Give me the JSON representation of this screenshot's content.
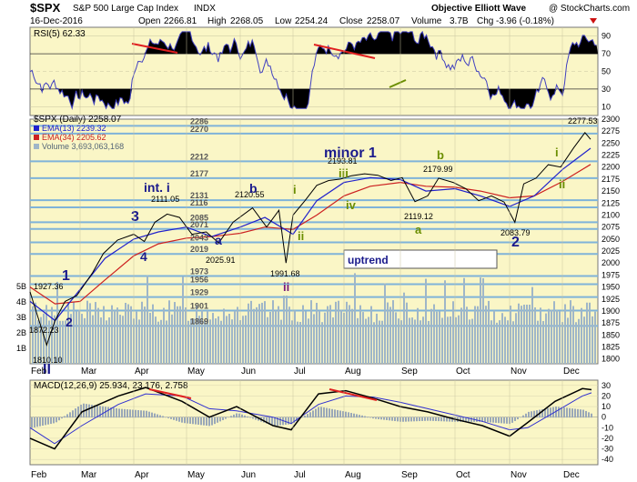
{
  "header": {
    "symbol": "$SPX",
    "name": "S&P 500 Large Cap Index",
    "exchange": "INDX",
    "date": "16-Dec-2016",
    "source": "Objective Elliott Wave",
    "copyright": "@ StockCharts.com",
    "open_label": "Open",
    "open": "2266.81",
    "high_label": "High",
    "high": "2268.05",
    "low_label": "Low",
    "low": "2254.24",
    "close_label": "Close",
    "close": "2258.07",
    "volume_label": "Volume",
    "volume": "3.7B",
    "chg_label": "Chg",
    "chg": "-3.96 (-0.18%)"
  },
  "colors": {
    "panel_bg": "#faf6c6",
    "price_line": "#000000",
    "ema13": "#2020cc",
    "ema34": "#cc2020",
    "volume": "#9fb6c8",
    "rsi_line": "#4040c0",
    "support_lines": "#7fb3d9",
    "wave_blue": "#1a1a8c",
    "wave_green": "#6b8e00",
    "wave_purple": "#7a1a7a",
    "trend_red": "#e02020",
    "macd_line": "#000000",
    "macd_signal": "#3030d0",
    "macd_hist": "#9aa8b8"
  },
  "rsi_panel": {
    "label": "RSI(5) 62.33",
    "ticks": [
      "90",
      "70",
      "50",
      "30",
      "10"
    ]
  },
  "price_panel": {
    "label": "$SPX (Daily) 2258.07",
    "legend": [
      {
        "text": "EMA(13) 2239.32",
        "color": "#2020cc"
      },
      {
        "text": "EMA(34) 2205.62",
        "color": "#cc2020"
      },
      {
        "text": "Volume 3,693,063,168",
        "color": "#9fb6c8"
      }
    ],
    "right_ticks": [
      "2300",
      "2275",
      "2250",
      "2225",
      "2200",
      "2175",
      "2150",
      "2125",
      "2100",
      "2075",
      "2050",
      "2025",
      "2000",
      "1975",
      "1950",
      "1925",
      "1900",
      "1875",
      "1850",
      "1825",
      "1800"
    ],
    "volume_ticks": [
      "5B",
      "4B",
      "3B",
      "2B",
      "1B"
    ],
    "uptrend_box": "uptrend"
  },
  "macd_panel": {
    "label": "MACD(12,26,9) 25.934, 23.176, 2.758",
    "ticks": [
      "30",
      "20",
      "10",
      "0",
      "-10",
      "-20",
      "-30",
      "-40"
    ]
  },
  "x_axis": {
    "months": [
      "Feb",
      "Mar",
      "Apr",
      "May",
      "Jun",
      "Jul",
      "Aug",
      "Sep",
      "Oct",
      "Nov",
      "Dec"
    ]
  },
  "support_levels": [
    "2286",
    "2270",
    "2212",
    "2177",
    "2131",
    "2116",
    "2085",
    "2071",
    "2043",
    "2019",
    "1973",
    "1956",
    "1929",
    "1901",
    "1869"
  ],
  "price_annotations": [
    "2277.53",
    "2193.81",
    "2179.99",
    "2120.55",
    "2111.05",
    "2119.12",
    "2083.79",
    "2025.91",
    "1991.68",
    "1927.36",
    "1872.23",
    "1810.10"
  ],
  "wave_labels": {
    "blue": [
      "1",
      "2",
      "3",
      "4",
      "int. i",
      "b",
      "a",
      "minor 1",
      "2",
      "II"
    ],
    "green": [
      "iii",
      "iv",
      "b",
      "a",
      "i",
      "ii",
      "i",
      "ii"
    ],
    "purple": [
      "ii"
    ]
  },
  "chart_data": {
    "type": "line",
    "title": "$SPX (Daily)",
    "x": [
      "Feb",
      "Mar",
      "Apr",
      "May",
      "Jun",
      "Jul",
      "Aug",
      "Sep",
      "Oct",
      "Nov",
      "Dec"
    ],
    "ylim": [
      1790,
      2300
    ],
    "series": [
      {
        "name": "$SPX (Daily)",
        "points": [
          [
            "Feb 1",
            1940
          ],
          [
            "Feb 11",
            1829
          ],
          [
            "Feb 16",
            1880
          ],
          [
            "Feb 22",
            1920
          ],
          [
            "Feb 29",
            1932
          ],
          [
            "Mar 8",
            1980
          ],
          [
            "Mar 14",
            2020
          ],
          [
            "Mar 22",
            2048
          ],
          [
            "Mar 31",
            2060
          ],
          [
            "Apr 7",
            2045
          ],
          [
            "Apr 13",
            2085
          ],
          [
            "Apr 20",
            2102
          ],
          [
            "Apr 27",
            2095
          ],
          [
            "May 4",
            2060
          ],
          [
            "May 12",
            2065
          ],
          [
            "May 19",
            2042
          ],
          [
            "May 27",
            2085
          ],
          [
            "Jun 8",
            2115
          ],
          [
            "Jun 16",
            2075
          ],
          [
            "Jun 23",
            2110
          ],
          [
            "Jun 27",
            2000
          ],
          [
            "Jul 1",
            2100
          ],
          [
            "Jul 8",
            2130
          ],
          [
            "Jul 15",
            2162
          ],
          [
            "Jul 22",
            2172
          ],
          [
            "Jul 29",
            2175
          ],
          [
            "Aug 5",
            2182
          ],
          [
            "Aug 12",
            2186
          ],
          [
            "Aug 19",
            2183
          ],
          [
            "Aug 26",
            2172
          ],
          [
            "Sep 2",
            2178
          ],
          [
            "Sep 9",
            2128
          ],
          [
            "Sep 16",
            2140
          ],
          [
            "Sep 22",
            2177
          ],
          [
            "Sep 30",
            2168
          ],
          [
            "Oct 7",
            2155
          ],
          [
            "Oct 14",
            2130
          ],
          [
            "Oct 21",
            2140
          ],
          [
            "Oct 28",
            2127
          ],
          [
            "Nov 4",
            2085
          ],
          [
            "Nov 9",
            2165
          ],
          [
            "Nov 16",
            2177
          ],
          [
            "Nov 23",
            2205
          ],
          [
            "Nov 30",
            2200
          ],
          [
            "Dec 7",
            2240
          ],
          [
            "Dec 13",
            2272
          ],
          [
            "Dec 16",
            2258
          ]
        ]
      },
      {
        "name": "EMA(13)",
        "points": [
          [
            "Feb 1",
            1920
          ],
          [
            "Feb 16",
            1880
          ],
          [
            "Mar 1",
            1945
          ],
          [
            "Mar 15",
            2010
          ],
          [
            "Apr 1",
            2050
          ],
          [
            "Apr 15",
            2065
          ],
          [
            "May 1",
            2075
          ],
          [
            "May 15",
            2055
          ],
          [
            "Jun 1",
            2075
          ],
          [
            "Jun 15",
            2095
          ],
          [
            "Jul 1",
            2060
          ],
          [
            "Jul 15",
            2130
          ],
          [
            "Aug 1",
            2168
          ],
          [
            "Aug 15",
            2178
          ],
          [
            "Sep 1",
            2174
          ],
          [
            "Sep 15",
            2150
          ],
          [
            "Oct 1",
            2155
          ],
          [
            "Oct 15",
            2140
          ],
          [
            "Nov 1",
            2118
          ],
          [
            "Nov 15",
            2140
          ],
          [
            "Dec 1",
            2195
          ],
          [
            "Dec 16",
            2239.32
          ]
        ]
      },
      {
        "name": "EMA(34)",
        "points": [
          [
            "Feb 1",
            1950
          ],
          [
            "Feb 16",
            1915
          ],
          [
            "Mar 1",
            1920
          ],
          [
            "Mar 15",
            1965
          ],
          [
            "Apr 1",
            2015
          ],
          [
            "Apr 15",
            2040
          ],
          [
            "May 1",
            2052
          ],
          [
            "May 15",
            2055
          ],
          [
            "Jun 1",
            2062
          ],
          [
            "Jun 15",
            2075
          ],
          [
            "Jul 1",
            2070
          ],
          [
            "Jul 15",
            2100
          ],
          [
            "Aug 1",
            2140
          ],
          [
            "Aug 15",
            2160
          ],
          [
            "Sep 1",
            2168
          ],
          [
            "Sep 15",
            2160
          ],
          [
            "Oct 1",
            2158
          ],
          [
            "Oct 15",
            2150
          ],
          [
            "Nov 1",
            2136
          ],
          [
            "Nov 15",
            2140
          ],
          [
            "Dec 1",
            2170
          ],
          [
            "Dec 16",
            2205.62
          ]
        ]
      }
    ]
  }
}
